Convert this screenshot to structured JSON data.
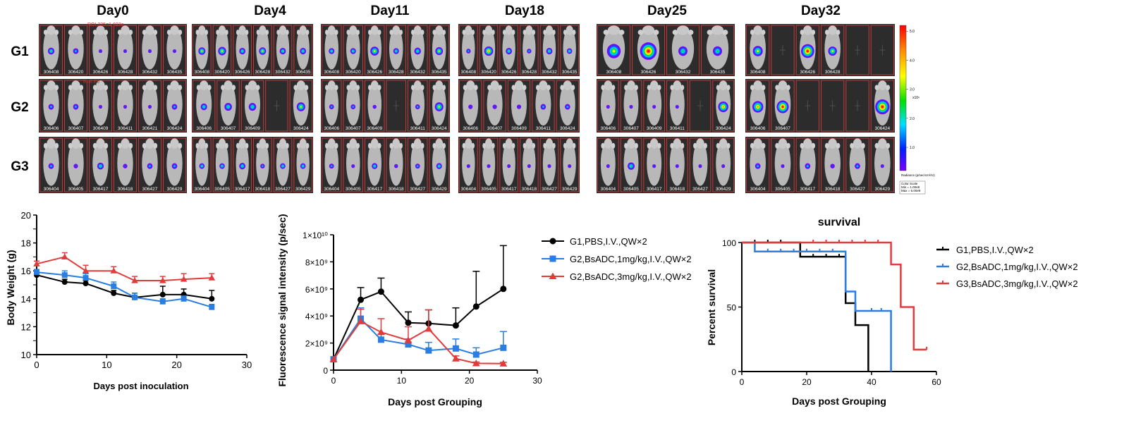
{
  "imaging": {
    "days": [
      "Day0",
      "Day4",
      "Day11",
      "Day18",
      "Day25",
      "Day32"
    ],
    "groups": [
      "G1",
      "G2",
      "G3"
    ],
    "colorbar": {
      "ticks": [
        "5.0",
        "4.0",
        "3.0",
        "2.0",
        "1.0"
      ],
      "exponent": "x10⁹",
      "unit_label": "Radiance (p/sec/cm²/sr)",
      "scale_title": "Color Scale",
      "scale_min": "Min = 1.00e8",
      "scale_max": "Max = 5.00e9",
      "colors": [
        "#ff0000",
        "#ff8000",
        "#ffff00",
        "#00ff00",
        "#00ffff",
        "#0000ff",
        "#8000ff"
      ]
    },
    "roi_annotations": [
      "ROI 225=1.023e",
      "B=9.E0"
    ],
    "panels": [
      [
        {
          "ids": [
            "306408",
            "306420",
            "306426",
            "306428",
            "306432",
            "306435"
          ],
          "signal": [
            0.6,
            0.5,
            0.3,
            0.3,
            0.2,
            0.3
          ],
          "blank": [
            0,
            0,
            0,
            0,
            0,
            0
          ]
        },
        {
          "ids": [
            "306408",
            "306420",
            "306426",
            "306428",
            "306432",
            "306435"
          ],
          "signal": [
            0.8,
            0.9,
            0.7,
            0.8,
            0.7,
            0.7
          ],
          "blank": [
            0,
            0,
            0,
            0,
            0,
            0
          ]
        },
        {
          "ids": [
            "306408",
            "306420",
            "306426",
            "306428",
            "306432",
            "306435"
          ],
          "signal": [
            0.6,
            0.6,
            0.9,
            0.6,
            0.7,
            0.8
          ],
          "blank": [
            0,
            0,
            0,
            0,
            0,
            0
          ]
        },
        {
          "ids": [
            "306408",
            "306420",
            "306426",
            "306428",
            "306432",
            "306435"
          ],
          "signal": [
            0.5,
            1.0,
            0.7,
            0.5,
            0.7,
            0.6
          ],
          "blank": [
            0,
            0,
            0,
            0,
            0,
            0
          ]
        },
        {
          "ids": [
            "306408",
            "306426",
            "306432",
            "306435"
          ],
          "signal": [
            0.9,
            1.1,
            0.6,
            0.6
          ],
          "blank": [
            0,
            0,
            0,
            0
          ]
        },
        {
          "ids": [
            "306408",
            "",
            "306426",
            "306428",
            "",
            ""
          ],
          "signal": [
            0.9,
            0,
            1.2,
            0.8,
            0,
            0
          ],
          "blank": [
            0,
            1,
            0,
            0,
            1,
            1
          ]
        }
      ],
      [
        {
          "ids": [
            "306406",
            "306407",
            "306409",
            "306411",
            "306421",
            "306424"
          ],
          "signal": [
            0.5,
            0.5,
            0.1,
            0.1,
            0.2,
            0.5
          ],
          "blank": [
            0,
            0,
            0,
            0,
            0,
            0
          ]
        },
        {
          "ids": [
            "306406",
            "306407",
            "306409",
            "",
            "306424"
          ],
          "signal": [
            0.6,
            0.7,
            0.7,
            0,
            0.8
          ],
          "blank": [
            0,
            0,
            0,
            1,
            0
          ]
        },
        {
          "ids": [
            "306406",
            "306407",
            "306409",
            "",
            "306411",
            "306424"
          ],
          "signal": [
            0.5,
            0.5,
            0.4,
            0,
            0.5,
            0.9
          ],
          "blank": [
            0,
            0,
            0,
            1,
            0,
            0
          ]
        },
        {
          "ids": [
            "306406",
            "306407",
            "306409",
            "306411",
            "306424"
          ],
          "signal": [
            0.4,
            0.4,
            0.4,
            0.5,
            0.5
          ],
          "blank": [
            0,
            0,
            0,
            0,
            0
          ]
        },
        {
          "ids": [
            "306406",
            "306407",
            "306409",
            "306411",
            "",
            "306424"
          ],
          "signal": [
            0.2,
            0.2,
            0.2,
            0.3,
            0,
            1.0
          ],
          "blank": [
            0,
            0,
            0,
            0,
            1,
            0
          ]
        },
        {
          "ids": [
            "306406",
            "306407",
            "",
            "",
            "",
            "306424"
          ],
          "signal": [
            1.0,
            1.1,
            0,
            0,
            0,
            1.3
          ],
          "blank": [
            0,
            0,
            1,
            1,
            1,
            0
          ]
        }
      ],
      [
        {
          "ids": [
            "306404",
            "306405",
            "306417",
            "306418",
            "306427",
            "306429"
          ],
          "signal": [
            0.5,
            0.4,
            0.6,
            0.4,
            0.5,
            0.5
          ],
          "blank": [
            0,
            0,
            0,
            0,
            0,
            0
          ]
        },
        {
          "ids": [
            "306404",
            "306405",
            "306417",
            "306418",
            "306427",
            "306429"
          ],
          "signal": [
            0.6,
            0.6,
            0.7,
            0.5,
            0.6,
            0.6
          ],
          "blank": [
            0,
            0,
            0,
            0,
            0,
            0
          ]
        },
        {
          "ids": [
            "306404",
            "306405",
            "306417",
            "306418",
            "306427",
            "306429"
          ],
          "signal": [
            0.5,
            0.3,
            0.6,
            0.4,
            0.5,
            0.6
          ],
          "blank": [
            0,
            0,
            0,
            0,
            0,
            0
          ]
        },
        {
          "ids": [
            "306404",
            "306405",
            "306417",
            "306418",
            "306427",
            "306429"
          ],
          "signal": [
            0.4,
            0.4,
            0.3,
            0.3,
            0.3,
            0.4
          ],
          "blank": [
            0,
            0,
            0,
            0,
            0,
            0
          ]
        },
        {
          "ids": [
            "306404",
            "306405",
            "306417",
            "306418",
            "306427",
            "306429"
          ],
          "signal": [
            0.3,
            0.7,
            0.3,
            0.3,
            0.2,
            0.2
          ],
          "blank": [
            0,
            0,
            0,
            0,
            0,
            0
          ]
        },
        {
          "ids": [
            "306404",
            "306405",
            "306417",
            "306418",
            "306427",
            "306429"
          ],
          "signal": [
            0.5,
            0.3,
            0.5,
            0.4,
            0.5,
            0.2
          ],
          "blank": [
            0,
            0,
            0,
            0,
            0,
            0
          ]
        }
      ]
    ]
  },
  "chart_data": [
    {
      "type": "line",
      "title": "",
      "xlabel": "Days post inoculation",
      "ylabel": "Body Weight (g)",
      "xlim": [
        0,
        30
      ],
      "ylim": [
        10,
        20
      ],
      "xticks": [
        "0",
        "10",
        "20",
        "30"
      ],
      "yticks": [
        "10",
        "12",
        "14",
        "16",
        "18",
        "20"
      ],
      "series": [
        {
          "color": "#000000",
          "marker": "circle",
          "x": [
            0,
            4,
            7,
            11,
            14,
            18,
            21,
            25
          ],
          "y": [
            15.7,
            15.2,
            15.1,
            14.4,
            14.1,
            14.3,
            14.3,
            14.0
          ],
          "err": [
            0.2,
            0.2,
            0.2,
            0.2,
            0.3,
            0.6,
            0.4,
            0.6
          ]
        },
        {
          "color": "#2a7de1",
          "marker": "square",
          "x": [
            0,
            4,
            7,
            11,
            14,
            18,
            21,
            25
          ],
          "y": [
            15.9,
            15.7,
            15.5,
            14.9,
            14.1,
            13.8,
            14.0,
            13.4
          ],
          "err": [
            0.2,
            0.3,
            0.3,
            0.3,
            0.3,
            0.2,
            0.2,
            0.2
          ]
        },
        {
          "color": "#e03c3c",
          "marker": "triangle",
          "x": [
            0,
            4,
            7,
            11,
            14,
            18,
            21,
            25
          ],
          "y": [
            16.5,
            17.0,
            16.0,
            16.0,
            15.3,
            15.3,
            15.4,
            15.5
          ],
          "err": [
            0.2,
            0.3,
            0.4,
            0.3,
            0.3,
            0.3,
            0.4,
            0.3
          ]
        }
      ]
    },
    {
      "type": "line",
      "title": "",
      "xlabel": "Days post Grouping",
      "ylabel": "Fluorescence signal intensity (p/sec)",
      "xlim": [
        0,
        30
      ],
      "ylim": [
        0,
        10000000000
      ],
      "xticks": [
        "0",
        "10",
        "20",
        "30"
      ],
      "yticks": [
        "0",
        "2×10⁹",
        "4×10⁹",
        "6×10⁹",
        "8×10⁹",
        "1×10¹⁰"
      ],
      "legend_position": "right",
      "series": [
        {
          "name": "G1,PBS,I.V.,QW×2",
          "color": "#000000",
          "marker": "circle",
          "x": [
            0,
            4,
            7,
            11,
            14,
            18,
            21,
            25
          ],
          "y": [
            800000000,
            5200000000,
            5800000000,
            3500000000,
            3450000000,
            3300000000,
            4700000000,
            6000000000
          ],
          "err": [
            0,
            900000000,
            1000000000,
            800000000,
            1000000000,
            1300000000,
            2600000000,
            3200000000
          ]
        },
        {
          "name": "G2,BsADC,1mg/kg,I.V.,QW×2",
          "color": "#2a7de1",
          "marker": "square",
          "x": [
            0,
            4,
            7,
            11,
            14,
            18,
            21,
            25
          ],
          "y": [
            800000000,
            3800000000,
            2250000000,
            1900000000,
            1450000000,
            1600000000,
            1150000000,
            1650000000
          ],
          "err": [
            0,
            800000000,
            400000000,
            400000000,
            600000000,
            700000000,
            500000000,
            1200000000
          ]
        },
        {
          "name": "G2,BsADC,3mg/kg,I.V.,QW×2",
          "color": "#e03c3c",
          "marker": "triangle",
          "x": [
            0,
            4,
            7,
            11,
            14,
            18,
            21,
            25
          ],
          "y": [
            800000000,
            3600000000,
            2800000000,
            2200000000,
            3050000000,
            850000000,
            500000000,
            480000000
          ],
          "err": [
            0,
            900000000,
            1000000000,
            1000000000,
            1400000000,
            200000000,
            100000000,
            100000000
          ]
        }
      ]
    },
    {
      "type": "line",
      "title": "survival",
      "xlabel": "Days post Grouping",
      "ylabel": "Percent survival",
      "xlim": [
        0,
        60
      ],
      "ylim": [
        0,
        100
      ],
      "xticks": [
        "0",
        "20",
        "40",
        "60"
      ],
      "yticks": [
        "0",
        "50",
        "100"
      ],
      "legend_position": "right",
      "series": [
        {
          "name": "G1,PBS,I.V.,QW×2",
          "color": "#000000",
          "x": [
            0,
            18,
            18,
            32,
            32,
            35,
            35,
            39,
            39
          ],
          "y": [
            100,
            100,
            89,
            89,
            53,
            53,
            36,
            36,
            0
          ],
          "censor_x": [
            4,
            8,
            12,
            22,
            26,
            30
          ],
          "censor_y": [
            100,
            100,
            100,
            89,
            89,
            89
          ]
        },
        {
          "name": "G2,BsADC,1mg/kg,I.V.,QW×2",
          "color": "#2a7de1",
          "x": [
            0,
            4,
            4,
            32,
            32,
            35,
            35,
            46,
            46
          ],
          "y": [
            100,
            100,
            93,
            93,
            62,
            62,
            47,
            47,
            0
          ],
          "censor_x": [
            8,
            12,
            16,
            20,
            24,
            28,
            40,
            43
          ],
          "censor_y": [
            93,
            93,
            93,
            93,
            93,
            93,
            47,
            47
          ]
        },
        {
          "name": "G3,BsADC,3mg/kg,I.V.,QW×2",
          "color": "#e03c3c",
          "x": [
            0,
            46,
            46,
            49,
            49,
            53,
            53,
            57
          ],
          "y": [
            100,
            100,
            83,
            83,
            50,
            50,
            17,
            17
          ],
          "censor_x": [
            22,
            26,
            30,
            34,
            38,
            42,
            57
          ],
          "censor_y": [
            100,
            100,
            100,
            100,
            100,
            100,
            17
          ]
        }
      ]
    }
  ]
}
